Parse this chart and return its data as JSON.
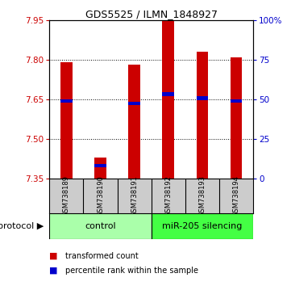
{
  "title": "GDS5525 / ILMN_1848927",
  "samples": [
    "GSM738189",
    "GSM738190",
    "GSM738191",
    "GSM738192",
    "GSM738193",
    "GSM738194"
  ],
  "bar_tops": [
    7.79,
    7.43,
    7.78,
    7.95,
    7.83,
    7.81
  ],
  "bar_bottom": 7.35,
  "percentile_values": [
    7.645,
    7.4,
    7.635,
    7.67,
    7.655,
    7.645
  ],
  "ylim": [
    7.35,
    7.95
  ],
  "yticks_left": [
    7.35,
    7.5,
    7.65,
    7.8,
    7.95
  ],
  "grid_yticks": [
    7.5,
    7.65,
    7.8
  ],
  "right_ytick_positions": [
    0,
    25,
    50,
    75,
    100
  ],
  "right_ytick_labels": [
    "0",
    "25",
    "50",
    "75",
    "100%"
  ],
  "bar_color": "#cc0000",
  "percentile_color": "#0000cc",
  "bar_width": 0.35,
  "pct_bar_height": 0.013,
  "group_control_color": "#aaffaa",
  "group_silencing_color": "#44ff44",
  "sample_bg_color": "#cccccc",
  "background_color": "#ffffff",
  "protocol_text": "protocol",
  "group_control_label": "control",
  "group_silencing_label": "miR-205 silencing",
  "legend_red_label": "transformed count",
  "legend_blue_label": "percentile rank within the sample",
  "title_fontsize": 9,
  "tick_fontsize": 7.5,
  "sample_fontsize": 6,
  "protocol_fontsize": 8,
  "legend_fontsize": 7
}
